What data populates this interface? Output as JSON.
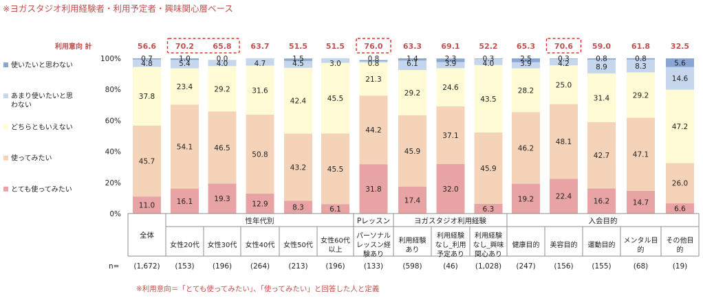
{
  "title": "※ヨガスタジオ利用経験者・利用予定者・興味関心層ベース",
  "footnote": "※利用意向＝「とても使ってみたい」、「使ってみたい」と回答した人と定義",
  "intent_label": "利用意向 計",
  "n_label": "n=",
  "colors": {
    "very_want": "#e8a3a4",
    "want": "#f5d3b9",
    "neutral": "#fefbd5",
    "not_much": "#c6d6ec",
    "not_want": "#8aa7d3",
    "intent_text": "#c0504d",
    "highlight": "#e0302a"
  },
  "chart_data": {
    "type": "bar",
    "stacked": true,
    "ylim": [
      0,
      100
    ],
    "yticks": [
      "0%",
      "20%",
      "40%",
      "60%",
      "80%",
      "100%"
    ],
    "legend_position": "left",
    "categories": [
      "全体",
      "女性20代",
      "女性30代",
      "女性40代",
      "女性50代",
      "女性60代以上",
      "パーソナルレッスン経験あり",
      "利用経験あり",
      "利用経験なし_利用予定あり",
      "利用経験なし_興味関心あり",
      "健康目的",
      "美容目的",
      "運動目的",
      "メンタル目的",
      "その他目的"
    ],
    "category_lines": [
      [
        "全体"
      ],
      [
        "女性20代"
      ],
      [
        "女性30代"
      ],
      [
        "女性40代"
      ],
      [
        "女性50代"
      ],
      [
        "女性60代",
        "以上"
      ],
      [
        "パーソナル",
        "レッスン経",
        "験あり"
      ],
      [
        "利用経験",
        "あり"
      ],
      [
        "利用経験",
        "なし_利用",
        "予定あり"
      ],
      [
        "利用経験",
        "なし_興味",
        "関心あり"
      ],
      [
        "健康目的"
      ],
      [
        "美容目的"
      ],
      [
        "運動目的"
      ],
      [
        "メンタル目",
        "的"
      ],
      [
        "その他目",
        "的"
      ]
    ],
    "groups": [
      {
        "label": "",
        "from": 0,
        "to": 0
      },
      {
        "label": "性年代別",
        "from": 1,
        "to": 5
      },
      {
        "label": "Pレッスン",
        "from": 6,
        "to": 6
      },
      {
        "label": "ヨガスタジオ利用経験",
        "from": 7,
        "to": 9
      },
      {
        "label": "入会目的",
        "from": 10,
        "to": 14
      }
    ],
    "n": [
      "(1,672)",
      "(153)",
      "(196)",
      "(264)",
      "(213)",
      "(196)",
      "(133)",
      "(598)",
      "(46)",
      "(1,028)",
      "(247)",
      "(156)",
      "(155)",
      "(68)",
      "(19)"
    ],
    "intent_total": [
      "56.6",
      "70.2",
      "65.8",
      "63.7",
      "51.5",
      "51.5",
      "76.0",
      "63.3",
      "69.1",
      "52.2",
      "65.3",
      "70.6",
      "59.0",
      "61.8",
      "32.5"
    ],
    "highlighted": [
      1,
      2,
      6,
      11
    ],
    "highlight_boxes": [
      [
        1,
        2
      ],
      [
        6,
        6
      ],
      [
        11,
        11
      ]
    ],
    "series": [
      {
        "name": "とても使ってみたい",
        "key": "very_want",
        "values": [
          11.0,
          16.1,
          19.3,
          12.9,
          8.3,
          6.1,
          31.8,
          17.4,
          32.0,
          6.3,
          19.2,
          22.4,
          16.2,
          14.7,
          6.6
        ],
        "labels": [
          "11.0",
          "16.1",
          "19.3",
          "12.9",
          "8.3",
          "6.1",
          "31.8",
          "17.4",
          "32.0",
          "6.3",
          "19.2",
          "22.4",
          "16.2",
          "14.7",
          "6.6"
        ]
      },
      {
        "name": "使ってみたい",
        "key": "want",
        "values": [
          45.7,
          54.1,
          46.5,
          50.8,
          43.2,
          45.5,
          44.2,
          45.9,
          37.1,
          45.9,
          46.2,
          48.1,
          42.7,
          47.1,
          26.0
        ],
        "labels": [
          "45.7",
          "54.1",
          "46.5",
          "50.8",
          "43.2",
          "45.5",
          "44.2",
          "45.9",
          "37.1",
          "45.9",
          "46.2",
          "48.1",
          "42.7",
          "47.1",
          "26.0"
        ]
      },
      {
        "name": "どちらともいえない",
        "key": "neutral",
        "values": [
          37.8,
          23.4,
          29.2,
          31.6,
          42.4,
          45.5,
          21.3,
          29.2,
          24.6,
          43.5,
          28.2,
          25.0,
          31.4,
          29.2,
          47.2
        ],
        "labels": [
          "37.8",
          "23.4",
          "29.2",
          "31.6",
          "42.4",
          "45.5",
          "21.3",
          "29.2",
          "24.6",
          "43.5",
          "28.2",
          "25.0",
          "31.4",
          "29.2",
          "47.2"
        ]
      },
      {
        "name": "あまり使いたいと思わない",
        "key": "not_much",
        "values": [
          4.8,
          5.4,
          4.0,
          4.7,
          4.5,
          3.0,
          0.8,
          6.1,
          3.9,
          4.0,
          3.9,
          4.2,
          8.9,
          8.3,
          14.6
        ],
        "labels": [
          "4.8",
          "5.4",
          "4.0",
          "4.7",
          "4.5",
          "3.0",
          "0.8",
          "6.1",
          "3.9",
          "4.0",
          "3.9",
          "4.2",
          "8.9",
          "8.3",
          "14.6"
        ]
      },
      {
        "name": "使いたいと思わない",
        "key": "not_want",
        "values": [
          0.7,
          1.0,
          0.0,
          0.0,
          1.5,
          0.0,
          0.8,
          1.4,
          2.3,
          0.3,
          2.5,
          0.3,
          0.8,
          0.8,
          5.6
        ],
        "labels": [
          "0.7",
          "1.0",
          "0.0",
          "",
          "1.5",
          "",
          "0.8",
          "1.4",
          "2.3",
          "0.3",
          "2.5",
          "0.3",
          "0.8",
          "0.8",
          "5.6"
        ]
      }
    ],
    "legend": [
      {
        "key": "not_want",
        "lines": [
          "使いたいと思わない"
        ]
      },
      {
        "key": "not_much",
        "lines": [
          "あまり使いたいと思",
          "わない"
        ]
      },
      {
        "key": "neutral",
        "lines": [
          "どちらともいえない"
        ]
      },
      {
        "key": "want",
        "lines": [
          "使ってみたい"
        ]
      },
      {
        "key": "very_want",
        "lines": [
          "とても使ってみたい"
        ]
      }
    ]
  }
}
